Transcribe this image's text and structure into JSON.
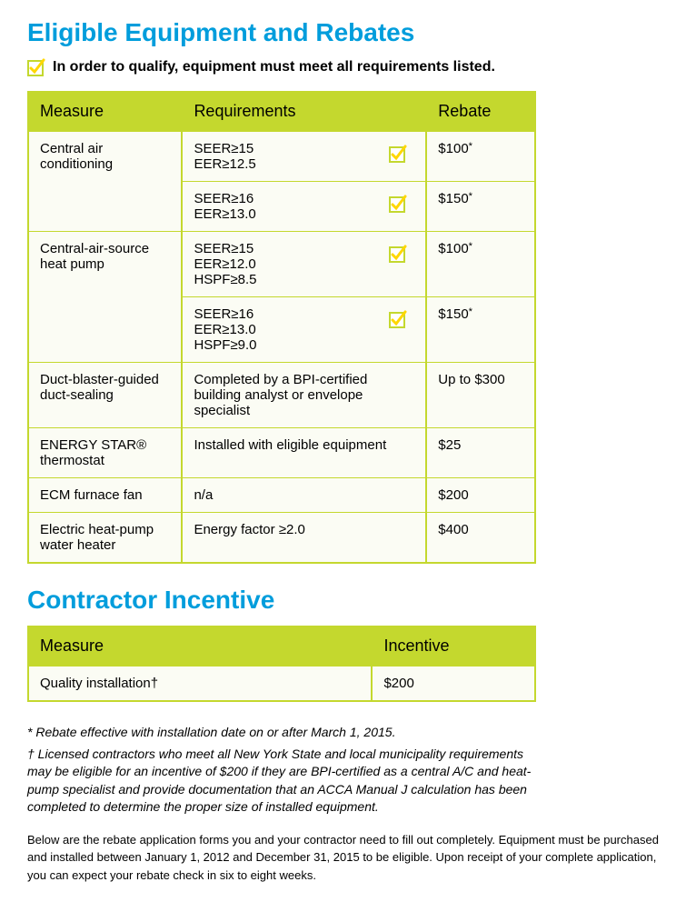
{
  "colors": {
    "accent_blue": "#009ddc",
    "lime": "#c4d82e",
    "cell_bg": "#fbfcf4",
    "text": "#000000",
    "check_yellow": "#ffd700"
  },
  "section1": {
    "title": "Eligible Equipment and Rebates",
    "qualify_text": "In order to qualify, equipment must meet all requirements listed.",
    "headers": {
      "measure": "Measure",
      "requirements": "Requirements",
      "rebate": "Rebate"
    },
    "rows": [
      {
        "measure": "Central air conditioning",
        "requirements": "SEER≥15\nEER≥12.5",
        "has_check": true,
        "rebate": "$100",
        "has_asterisk": true,
        "rowspan": 2
      },
      {
        "measure": "",
        "requirements": "SEER≥16\nEER≥13.0",
        "has_check": true,
        "rebate": "$150",
        "has_asterisk": true
      },
      {
        "measure": "Central-air-source heat pump",
        "requirements": "SEER≥15\nEER≥12.0\nHSPF≥8.5",
        "has_check": true,
        "rebate": "$100",
        "has_asterisk": true,
        "rowspan": 2
      },
      {
        "measure": "",
        "requirements": "SEER≥16\nEER≥13.0\nHSPF≥9.0",
        "has_check": true,
        "rebate": "$150",
        "has_asterisk": true
      },
      {
        "measure": "Duct-blaster-guided duct-sealing",
        "requirements": "Completed by a BPI-certified building analyst or envelope specialist",
        "has_check": false,
        "rebate": "Up to $300",
        "has_asterisk": false
      },
      {
        "measure": "ENERGY STAR® thermostat",
        "requirements": "Installed with eligible equipment",
        "has_check": false,
        "rebate": "$25",
        "has_asterisk": false
      },
      {
        "measure": "ECM furnace fan",
        "requirements": "n/a",
        "has_check": false,
        "rebate": "$200",
        "has_asterisk": false
      },
      {
        "measure": "Electric heat-pump water heater",
        "requirements": "Energy factor ≥2.0",
        "has_check": false,
        "rebate": "$400",
        "has_asterisk": false
      }
    ]
  },
  "section2": {
    "title": "Contractor Incentive",
    "headers": {
      "measure": "Measure",
      "incentive": "Incentive"
    },
    "rows": [
      {
        "measure": "Quality installation†",
        "incentive": "$200"
      }
    ]
  },
  "footnotes": {
    "asterisk": "* Rebate effective with installation date on or after March 1, 2015.",
    "dagger": "† Licensed contractors who meet all New York State and local municipality requirements may be eligible for an incentive of $200 if they are BPI-certified as a central A/C and heat-pump specialist and provide documentation that an ACCA Manual J calculation has been completed to determine the proper size of installed equipment."
  },
  "below_text": "Below are the rebate application forms you and your contractor need to fill out completely. Equipment must be purchased and installed between January 1, 2012 and December 31, 2015 to be eligible. Upon receipt of your complete application, you can expect your rebate check in six to eight weeks."
}
